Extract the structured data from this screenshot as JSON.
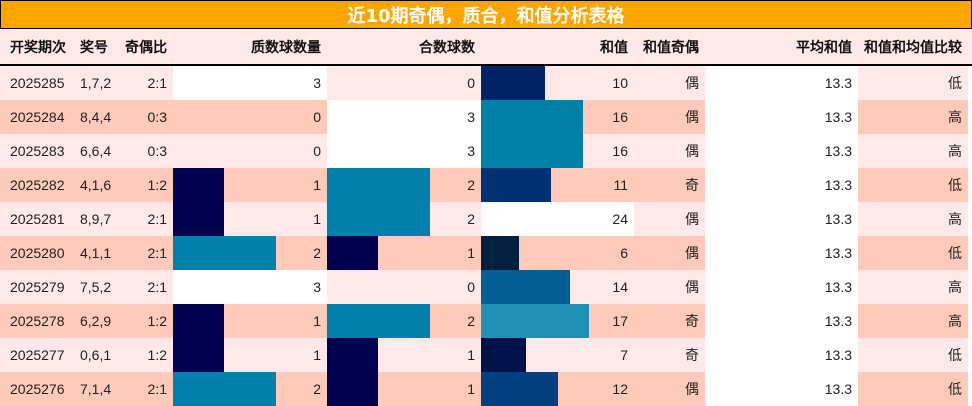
{
  "title": "近10期奇偶，质合，和值分析表格",
  "headers": {
    "issue": "开奖期次",
    "numbers": "奖号",
    "odd_even_ratio": "奇偶比",
    "prime_count": "质数球数量",
    "composite_count": "合数球数",
    "sum": "和值",
    "sum_parity": "和值奇偶",
    "avg_sum": "平均和值",
    "sum_vs_avg": "和值和均值比较"
  },
  "colors": {
    "title_bg": "#FFA500",
    "row_light": "#FFE8EA",
    "row_dark": "#FFCABA",
    "bar_low": "#000050",
    "bar_mid": "#0080AA"
  },
  "rows": [
    {
      "issue": "2025285",
      "numbers": "1,7,2",
      "ratio": "2:1",
      "prime": "3",
      "composite": "0",
      "sum": "10",
      "parity": "偶",
      "avg": "13.3",
      "cmp": "低"
    },
    {
      "issue": "2025284",
      "numbers": "8,4,4",
      "ratio": "0:3",
      "prime": "0",
      "composite": "3",
      "sum": "16",
      "parity": "偶",
      "avg": "13.3",
      "cmp": "高"
    },
    {
      "issue": "2025283",
      "numbers": "6,6,4",
      "ratio": "0:3",
      "prime": "0",
      "composite": "3",
      "sum": "16",
      "parity": "偶",
      "avg": "13.3",
      "cmp": "高"
    },
    {
      "issue": "2025282",
      "numbers": "4,1,6",
      "ratio": "1:2",
      "prime": "1",
      "composite": "2",
      "sum": "11",
      "parity": "奇",
      "avg": "13.3",
      "cmp": "低"
    },
    {
      "issue": "2025281",
      "numbers": "8,9,7",
      "ratio": "2:1",
      "prime": "1",
      "composite": "2",
      "sum": "24",
      "parity": "偶",
      "avg": "13.3",
      "cmp": "高"
    },
    {
      "issue": "2025280",
      "numbers": "4,1,1",
      "ratio": "2:1",
      "prime": "2",
      "composite": "1",
      "sum": "6",
      "parity": "偶",
      "avg": "13.3",
      "cmp": "低"
    },
    {
      "issue": "2025279",
      "numbers": "7,5,2",
      "ratio": "2:1",
      "prime": "3",
      "composite": "0",
      "sum": "14",
      "parity": "偶",
      "avg": "13.3",
      "cmp": "高"
    },
    {
      "issue": "2025278",
      "numbers": "6,2,9",
      "ratio": "1:2",
      "prime": "1",
      "composite": "2",
      "sum": "17",
      "parity": "奇",
      "avg": "13.3",
      "cmp": "高"
    },
    {
      "issue": "2025277",
      "numbers": "0,6,1",
      "ratio": "1:2",
      "prime": "1",
      "composite": "1",
      "sum": "7",
      "parity": "奇",
      "avg": "13.3",
      "cmp": "低"
    },
    {
      "issue": "2025276",
      "numbers": "7,1,4",
      "ratio": "2:1",
      "prime": "2",
      "composite": "1",
      "sum": "12",
      "parity": "偶",
      "avg": "13.3",
      "cmp": "低"
    }
  ]
}
